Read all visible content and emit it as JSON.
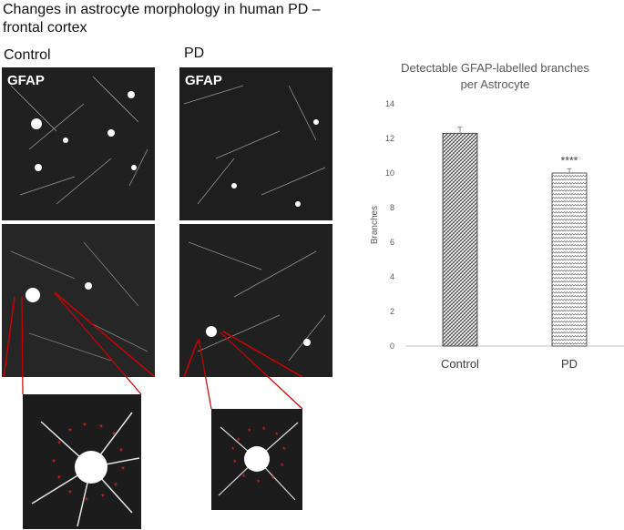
{
  "figure": {
    "title": "Changes in astrocyte morphology in human PD –",
    "title_line2": "frontal cortex",
    "panels": {
      "control_label": "Control",
      "pd_label": "PD",
      "stain_label": "GFAP"
    }
  },
  "chart_data": {
    "type": "bar",
    "title": "Detectable GFAP-labelled branches",
    "title_line2": "per Astrocyte",
    "categories": [
      "Control",
      "PD"
    ],
    "values": [
      12.3,
      10.0
    ],
    "errors": [
      0.35,
      0.25
    ],
    "annotations": [
      "",
      "****"
    ],
    "ylabel": "Branches",
    "ylim": [
      0,
      14
    ],
    "yticks": [
      "0",
      "2",
      "4",
      "6",
      "8",
      "10",
      "12",
      "14"
    ],
    "grid": false,
    "legend": "none",
    "colors": {
      "bar_fill": "#ffffff",
      "bar_pattern": "#555555",
      "axis": "#bfbfbf",
      "text": "#595959"
    }
  }
}
